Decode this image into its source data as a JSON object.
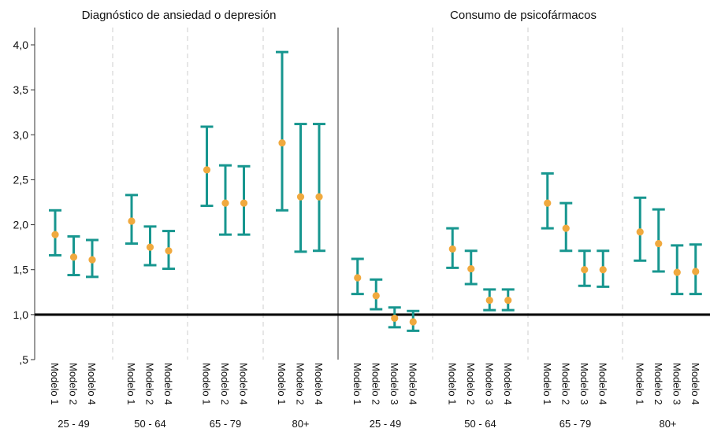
{
  "chart_data": {
    "type": "errorbar",
    "ylim": [
      0.5,
      4.2
    ],
    "y_ticks": [
      {
        "value": 0.5,
        "label": ",5"
      },
      {
        "value": 1.0,
        "label": "1,0"
      },
      {
        "value": 1.5,
        "label": "1,5"
      },
      {
        "value": 2.0,
        "label": "2,0"
      },
      {
        "value": 2.5,
        "label": "2,5"
      },
      {
        "value": 3.0,
        "label": "3,0"
      },
      {
        "value": 3.5,
        "label": "3,5"
      },
      {
        "value": 4.0,
        "label": "4,0"
      }
    ],
    "reference_line": 1.0,
    "colors": {
      "errorbar": "#17968f",
      "point": "#f0a93e",
      "reference": "#000000",
      "separator": "#cccccc",
      "panel_divider": "#555555"
    },
    "panels": [
      {
        "title": "Diagnóstico de ansiedad o depresión",
        "groups": [
          {
            "label": "25 - 49",
            "points": [
              {
                "model": "Modelo 1",
                "estimate": 1.89,
                "lower": 1.66,
                "upper": 2.16
              },
              {
                "model": "Modelo 2",
                "estimate": 1.64,
                "lower": 1.44,
                "upper": 1.87
              },
              {
                "model": "Modelo 4",
                "estimate": 1.61,
                "lower": 1.42,
                "upper": 1.83
              }
            ]
          },
          {
            "label": "50 - 64",
            "points": [
              {
                "model": "Modelo 1",
                "estimate": 2.04,
                "lower": 1.79,
                "upper": 2.33
              },
              {
                "model": "Modelo 2",
                "estimate": 1.75,
                "lower": 1.55,
                "upper": 1.98
              },
              {
                "model": "Modelo 4",
                "estimate": 1.71,
                "lower": 1.51,
                "upper": 1.93
              }
            ]
          },
          {
            "label": "65 - 79",
            "points": [
              {
                "model": "Modelo 1",
                "estimate": 2.61,
                "lower": 2.21,
                "upper": 3.09
              },
              {
                "model": "Modelo 2",
                "estimate": 2.24,
                "lower": 1.89,
                "upper": 2.66
              },
              {
                "model": "Modelo 4",
                "estimate": 2.24,
                "lower": 1.89,
                "upper": 2.65
              }
            ]
          },
          {
            "label": "80+",
            "points": [
              {
                "model": "Modelo 1",
                "estimate": 2.91,
                "lower": 2.16,
                "upper": 3.92
              },
              {
                "model": "Modelo 2",
                "estimate": 2.31,
                "lower": 1.7,
                "upper": 3.12
              },
              {
                "model": "Modelo 4",
                "estimate": 2.31,
                "lower": 1.71,
                "upper": 3.12
              }
            ]
          }
        ]
      },
      {
        "title": "Consumo de psicofármacos",
        "groups": [
          {
            "label": "25 - 49",
            "points": [
              {
                "model": "Modelo 1",
                "estimate": 1.41,
                "lower": 1.23,
                "upper": 1.62
              },
              {
                "model": "Modelo 2",
                "estimate": 1.21,
                "lower": 1.06,
                "upper": 1.39
              },
              {
                "model": "Modelo 3",
                "estimate": 0.96,
                "lower": 0.86,
                "upper": 1.08
              },
              {
                "model": "Modelo 4",
                "estimate": 0.92,
                "lower": 0.82,
                "upper": 1.04
              }
            ]
          },
          {
            "label": "50 - 64",
            "points": [
              {
                "model": "Modelo 1",
                "estimate": 1.73,
                "lower": 1.52,
                "upper": 1.96
              },
              {
                "model": "Modelo 2",
                "estimate": 1.51,
                "lower": 1.34,
                "upper": 1.71
              },
              {
                "model": "Modelo 3",
                "estimate": 1.16,
                "lower": 1.05,
                "upper": 1.28
              },
              {
                "model": "Modelo 4",
                "estimate": 1.16,
                "lower": 1.05,
                "upper": 1.28
              }
            ]
          },
          {
            "label": "65 - 79",
            "points": [
              {
                "model": "Modelo 1",
                "estimate": 2.24,
                "lower": 1.96,
                "upper": 2.57
              },
              {
                "model": "Modelo 2",
                "estimate": 1.96,
                "lower": 1.71,
                "upper": 2.24
              },
              {
                "model": "Modelo 3",
                "estimate": 1.5,
                "lower": 1.32,
                "upper": 1.71
              },
              {
                "model": "Modelo 4",
                "estimate": 1.5,
                "lower": 1.31,
                "upper": 1.71
              }
            ]
          },
          {
            "label": "80+",
            "points": [
              {
                "model": "Modelo 1",
                "estimate": 1.92,
                "lower": 1.6,
                "upper": 2.3
              },
              {
                "model": "Modelo 2",
                "estimate": 1.79,
                "lower": 1.48,
                "upper": 2.17
              },
              {
                "model": "Modelo 3",
                "estimate": 1.47,
                "lower": 1.23,
                "upper": 1.77
              },
              {
                "model": "Modelo 4",
                "estimate": 1.48,
                "lower": 1.23,
                "upper": 1.78
              }
            ]
          }
        ]
      }
    ]
  }
}
